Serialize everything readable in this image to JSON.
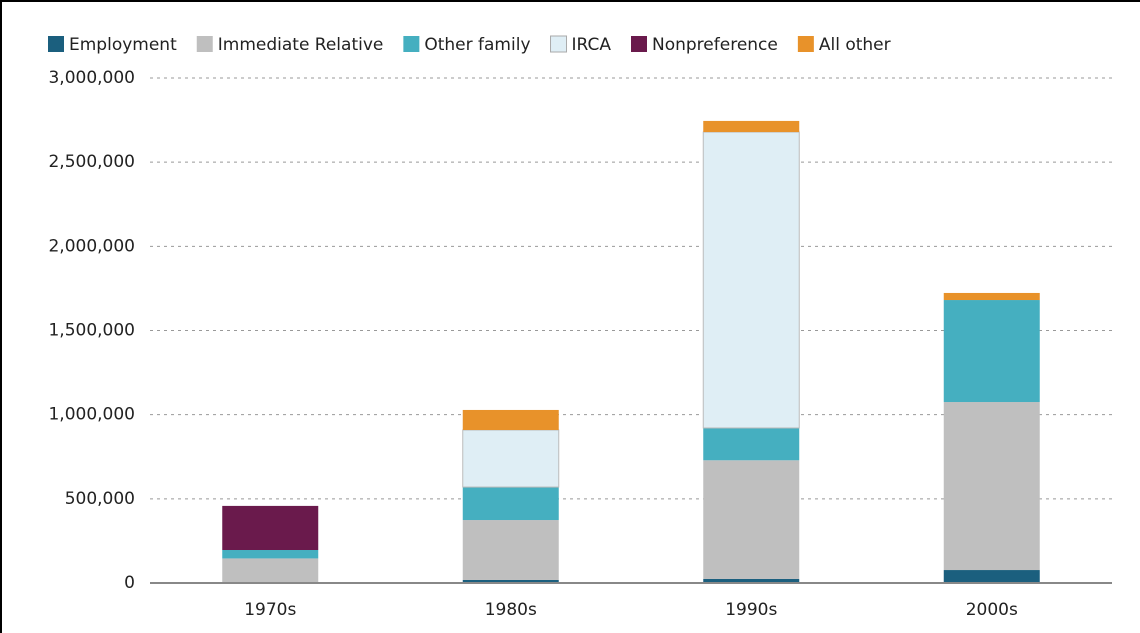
{
  "chart_data": {
    "type": "stacked-bar",
    "categories": [
      "1970s",
      "1980s",
      "1990s",
      "2000s"
    ],
    "series": [
      {
        "name": "Employment",
        "color": "#1b5f7e",
        "values": [
          3000,
          18000,
          24000,
          77000
        ]
      },
      {
        "name": "Immediate Relative",
        "color": "#bfbfbf",
        "values": [
          143000,
          356000,
          705000,
          998000
        ]
      },
      {
        "name": "Other family",
        "color": "#45afc0",
        "values": [
          50000,
          196000,
          192000,
          606000
        ]
      },
      {
        "name": "IRCA",
        "color": "#dfeef5",
        "values": [
          0,
          339000,
          1758000,
          0
        ]
      },
      {
        "name": "Nonpreference",
        "color": "#6a1a4c",
        "values": [
          262000,
          0,
          0,
          0
        ]
      },
      {
        "name": "All other",
        "color": "#e8922a",
        "values": [
          0,
          119000,
          66000,
          42000
        ]
      }
    ],
    "ylim": [
      0,
      3000000
    ],
    "yticks": [
      0,
      {
        "value": 500000,
        "label": "500,000"
      },
      {
        "value": 1000000,
        "label": "1,000,000"
      },
      {
        "value": 1500000,
        "label": "1,500,000"
      },
      {
        "value": 2000000,
        "label": "2,000,000"
      },
      {
        "value": 2500000,
        "label": "2,500,000"
      },
      {
        "value": 3000000,
        "label": "3,000,000"
      }
    ],
    "grid": true
  }
}
